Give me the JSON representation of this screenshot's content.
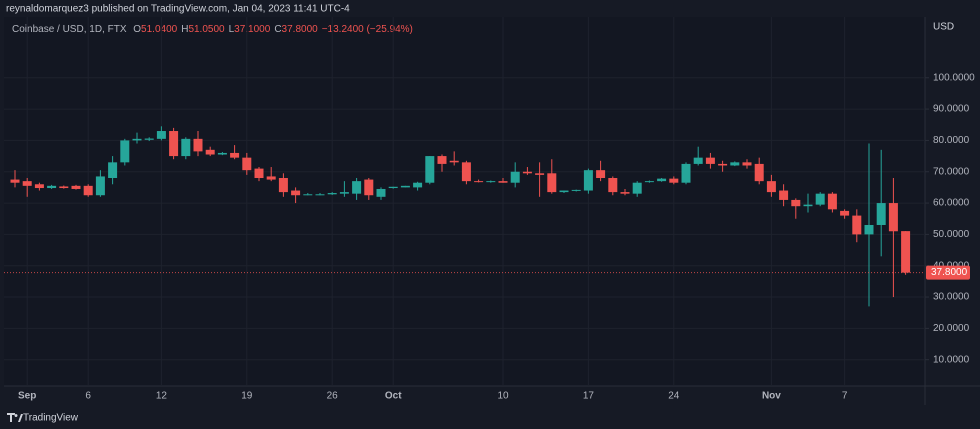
{
  "chart_data": {
    "type": "candlestick",
    "attribution": "reynaldomarquez3 published on TradingView.com, Jan 04, 2023 11:41 UTC-4",
    "symbol": "Coinbase / USD, 1D, FTX",
    "ohlc_header": [
      {
        "key": "O",
        "value": "51.0400"
      },
      {
        "key": "H",
        "value": "51.0500"
      },
      {
        "key": "L",
        "value": "37.1000"
      },
      {
        "key": "C",
        "value": "37.8000"
      }
    ],
    "change": "−13.2400 (−25.94%)",
    "currency": "USD",
    "brand": "TradingView",
    "up_color": "#26a69a",
    "down_color": "#ef5350",
    "grid": true,
    "categories": [
      null,
      "Sep",
      null,
      null,
      null,
      null,
      "6",
      null,
      null,
      null,
      null,
      null,
      "12",
      null,
      null,
      null,
      null,
      null,
      null,
      "19",
      null,
      null,
      null,
      null,
      null,
      null,
      "26",
      null,
      null,
      null,
      null,
      "Oct",
      null,
      null,
      null,
      null,
      null,
      null,
      null,
      null,
      "10",
      null,
      null,
      null,
      null,
      null,
      null,
      "17",
      null,
      null,
      null,
      null,
      null,
      null,
      "24",
      null,
      null,
      null,
      null,
      null,
      null,
      null,
      "Nov",
      null,
      null,
      null,
      null,
      null,
      "7",
      null,
      null,
      null,
      null,
      null
    ],
    "open": [
      67.5,
      67,
      66,
      64.8,
      65.3,
      65.5,
      65.5,
      62.5,
      68,
      73,
      80,
      80.2,
      80.5,
      83,
      75,
      80.5,
      77,
      75.5,
      76,
      74.5,
      71,
      68.5,
      68,
      64,
      62.8,
      62.8,
      62.8,
      63,
      63,
      67.5,
      62,
      64.8,
      65,
      65,
      66.5,
      75,
      73.5,
      73,
      67,
      66.8,
      67,
      66.5,
      70,
      69.5,
      69.5,
      63.5,
      64,
      64,
      70.5,
      68,
      63.5,
      63,
      66.8,
      67,
      67.8,
      66.5,
      72.5,
      74.5,
      72.5,
      72,
      73,
      72.5,
      67,
      64,
      61,
      59,
      59.5,
      63,
      57.5,
      56,
      50,
      53,
      60,
      51.04
    ],
    "high": [
      70.5,
      68,
      66.5,
      65.8,
      65.6,
      65.8,
      66,
      70.5,
      75,
      80.5,
      82.5,
      81,
      84.5,
      84,
      81,
      83,
      78,
      76.3,
      78.5,
      76,
      71.5,
      71.5,
      69.5,
      65,
      63.2,
      63.2,
      63.5,
      67,
      68,
      68,
      65,
      65.2,
      65.5,
      66.8,
      75,
      75.5,
      76.5,
      73.5,
      67.5,
      67.2,
      68,
      73,
      71.5,
      73,
      74,
      64,
      64.3,
      71,
      73.5,
      68.5,
      64.5,
      67,
      67.2,
      68,
      68.5,
      73,
      78,
      76,
      73.5,
      73.3,
      74,
      74.5,
      69,
      66,
      61.5,
      63,
      63.5,
      63.5,
      58,
      58,
      79,
      77,
      68,
      51.05
    ],
    "low": [
      65,
      62,
      64,
      64.5,
      64.6,
      64.3,
      62,
      62,
      66,
      72,
      79,
      79.8,
      80,
      74,
      74,
      75,
      75,
      75.3,
      74,
      69,
      67,
      67,
      62,
      60,
      62.5,
      62.5,
      62.6,
      62,
      61,
      61,
      61,
      64.6,
      65,
      64,
      66,
      70,
      72,
      66,
      66.6,
      66.5,
      66.5,
      65,
      69,
      62,
      63,
      63.2,
      63.7,
      63,
      67,
      62.5,
      62.5,
      62,
      66.5,
      66.8,
      66,
      66,
      72,
      71,
      70,
      71.8,
      71,
      66,
      62,
      59,
      55,
      57,
      59,
      57,
      55,
      47.5,
      27,
      43,
      30,
      37.1
    ],
    "close": [
      66.5,
      65.5,
      64.8,
      65.5,
      64.8,
      64.5,
      62.5,
      68.5,
      73,
      80,
      80.5,
      80.6,
      83,
      75,
      80.5,
      76.5,
      75.5,
      76,
      74.5,
      70.5,
      68,
      67.5,
      63.5,
      62.5,
      62.8,
      62.8,
      63.2,
      63.5,
      67,
      62.5,
      64.5,
      65.2,
      65.5,
      66.5,
      75,
      72.5,
      73,
      67,
      66.8,
      67,
      66.5,
      70,
      69.5,
      69,
      63.5,
      64,
      64.2,
      70.5,
      68,
      63.5,
      63,
      66.5,
      67,
      67.8,
      66.5,
      72.5,
      74.5,
      72.5,
      72,
      73,
      72,
      67,
      63.5,
      61,
      59,
      59.5,
      63,
      58,
      56,
      50,
      53,
      60,
      51,
      37.8
    ],
    "ylim": [
      1.6,
      119.4
    ],
    "yticks": [
      {
        "value": 10,
        "label": "10.0000"
      },
      {
        "value": 20,
        "label": "20.0000"
      },
      {
        "value": 30,
        "label": "30.0000"
      },
      {
        "value": 40,
        "label": "40.0000"
      },
      {
        "value": 50,
        "label": "50.0000"
      },
      {
        "value": 60,
        "label": "60.0000"
      },
      {
        "value": 70,
        "label": "70.0000"
      },
      {
        "value": 80,
        "label": "80.0000"
      },
      {
        "value": 90,
        "label": "90.0000"
      },
      {
        "value": 100,
        "label": "100.0000"
      }
    ],
    "last_price": {
      "value": 37.8,
      "label": "37.8000"
    }
  }
}
